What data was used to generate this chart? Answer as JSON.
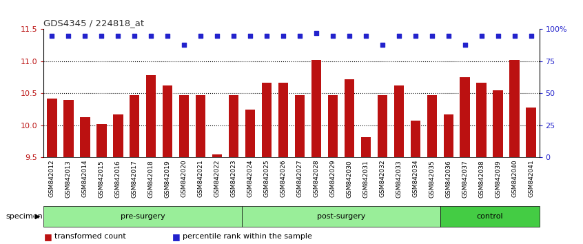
{
  "title": "GDS4345 / 224818_at",
  "categories": [
    "GSM842012",
    "GSM842013",
    "GSM842014",
    "GSM842015",
    "GSM842016",
    "GSM842017",
    "GSM842018",
    "GSM842019",
    "GSM842020",
    "GSM842021",
    "GSM842022",
    "GSM842023",
    "GSM842024",
    "GSM842025",
    "GSM842026",
    "GSM842027",
    "GSM842028",
    "GSM842029",
    "GSM842030",
    "GSM842031",
    "GSM842032",
    "GSM842033",
    "GSM842034",
    "GSM842035",
    "GSM842036",
    "GSM842037",
    "GSM842038",
    "GSM842039",
    "GSM842040",
    "GSM842041"
  ],
  "bar_values": [
    10.42,
    10.4,
    10.13,
    10.02,
    10.17,
    10.47,
    10.78,
    10.62,
    10.47,
    10.47,
    9.55,
    10.47,
    10.25,
    10.67,
    10.67,
    10.47,
    11.02,
    10.47,
    10.72,
    9.82,
    10.47,
    10.62,
    10.07,
    10.47,
    10.17,
    10.75,
    10.67,
    10.55,
    11.02,
    10.28
  ],
  "percentile_values": [
    95,
    95,
    95,
    95,
    95,
    95,
    95,
    95,
    88,
    95,
    95,
    95,
    95,
    95,
    95,
    95,
    97,
    95,
    95,
    95,
    88,
    95,
    95,
    95,
    95,
    88,
    95,
    95,
    95,
    95
  ],
  "groups": [
    {
      "label": "pre-surgery",
      "start": 0,
      "end": 11,
      "color": "#99ee99"
    },
    {
      "label": "post-surgery",
      "start": 12,
      "end": 23,
      "color": "#99ee99"
    },
    {
      "label": "control",
      "start": 24,
      "end": 29,
      "color": "#44cc44"
    }
  ],
  "bar_color": "#bb1111",
  "percentile_color": "#2222cc",
  "ylim_left": [
    9.5,
    11.5
  ],
  "ylim_right": [
    0,
    100
  ],
  "yticks_left": [
    9.5,
    10.0,
    10.5,
    11.0,
    11.5
  ],
  "yticks_right": [
    0,
    25,
    50,
    75,
    100
  ],
  "ytick_labels_right": [
    "0",
    "25",
    "50",
    "75",
    "100%"
  ],
  "grid_values": [
    10.0,
    10.5,
    11.0
  ],
  "bar_bottom": 9.5,
  "xlabel": "specimen",
  "legend_items": [
    {
      "label": "transformed count",
      "color": "#bb1111"
    },
    {
      "label": "percentile rank within the sample",
      "color": "#2222cc"
    }
  ],
  "left_tick_color": "#bb1111",
  "right_tick_color": "#2222cc",
  "title_color": "#333333",
  "tick_bg_color": "#cccccc",
  "fig_width": 8.46,
  "fig_height": 3.54,
  "fig_dpi": 100
}
